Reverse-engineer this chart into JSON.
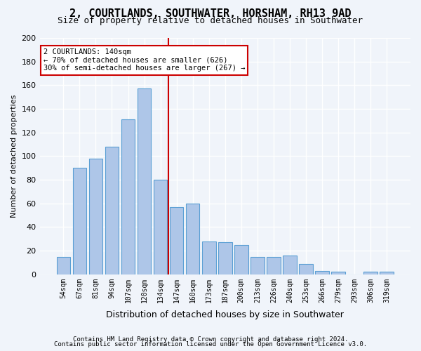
{
  "title": "2, COURTLANDS, SOUTHWATER, HORSHAM, RH13 9AD",
  "subtitle": "Size of property relative to detached houses in Southwater",
  "xlabel": "Distribution of detached houses by size in Southwater",
  "ylabel": "Number of detached properties",
  "categories": [
    "54sqm",
    "67sqm",
    "81sqm",
    "94sqm",
    "107sqm",
    "120sqm",
    "134sqm",
    "147sqm",
    "160sqm",
    "173sqm",
    "187sqm",
    "200sqm",
    "213sqm",
    "226sqm",
    "240sqm",
    "253sqm",
    "266sqm",
    "279sqm",
    "293sqm",
    "306sqm",
    "319sqm"
  ],
  "values": [
    15,
    90,
    98,
    108,
    131,
    157,
    80,
    57,
    60,
    28,
    27,
    25,
    15,
    15,
    16,
    9,
    3,
    2,
    0,
    2,
    2
  ],
  "bar_color": "#aec6e8",
  "bar_edge_color": "#5a9fd4",
  "vline_x": 6.5,
  "vline_color": "#cc0000",
  "annotation_title": "2 COURTLANDS: 140sqm",
  "annotation_line1": "← 70% of detached houses are smaller (626)",
  "annotation_line2": "30% of semi-detached houses are larger (267) →",
  "annotation_box_color": "#ffffff",
  "annotation_box_edge": "#cc0000",
  "ylim": [
    0,
    200
  ],
  "yticks": [
    0,
    20,
    40,
    60,
    80,
    100,
    120,
    140,
    160,
    180,
    200
  ],
  "footer1": "Contains HM Land Registry data © Crown copyright and database right 2024.",
  "footer2": "Contains public sector information licensed under the Open Government Licence v3.0.",
  "bg_color": "#f0f4fa",
  "plot_bg_color": "#f0f4fa",
  "grid_color": "#ffffff"
}
